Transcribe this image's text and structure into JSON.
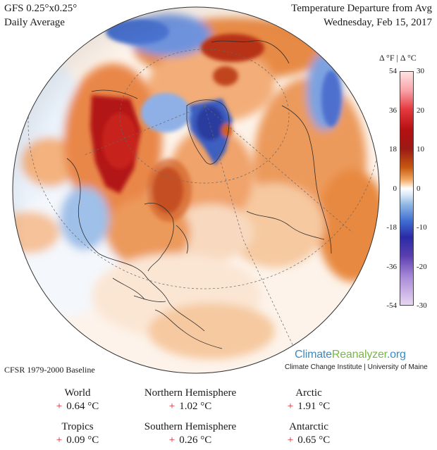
{
  "header": {
    "model": "GFS 0.25°x0.25°",
    "period": "Daily Average",
    "title": "Temperature Departure from Avg",
    "date": "Wednesday, Feb 15, 2017"
  },
  "scale": {
    "heading": "Δ °F | Δ °C",
    "fahrenheit_ticks": [
      "54",
      "36",
      "18",
      "0",
      "-18",
      "-36",
      "-54"
    ],
    "celsius_ticks": [
      "30",
      "20",
      "10",
      "0",
      "-10",
      "-20",
      "-30"
    ],
    "range_f": [
      -54,
      54
    ],
    "range_c": [
      -30,
      30
    ]
  },
  "baseline": "CFSR 1979-2000 Baseline",
  "brand": {
    "name_part1": "Climate",
    "name_part2": "Reanalyzer",
    "name_part3": ".org",
    "subtitle": "Climate Change Institute | University of Maine"
  },
  "stats": [
    {
      "name": "World",
      "sign": "+",
      "value": "0.64 °C"
    },
    {
      "name": "Northern Hemisphere",
      "sign": "+",
      "value": "1.02 °C"
    },
    {
      "name": "Arctic",
      "sign": "+",
      "value": "1.91 °C"
    },
    {
      "name": "Tropics",
      "sign": "+",
      "value": "0.09 °C"
    },
    {
      "name": "Southern Hemisphere",
      "sign": "+",
      "value": "0.26 °C"
    },
    {
      "name": "Antarctic",
      "sign": "+",
      "value": "0.65 °C"
    }
  ],
  "colors": {
    "hot": "#b50f12",
    "warm": "#e58a3a",
    "cold": "#2a3fbf",
    "neutral": "#ffffff"
  }
}
